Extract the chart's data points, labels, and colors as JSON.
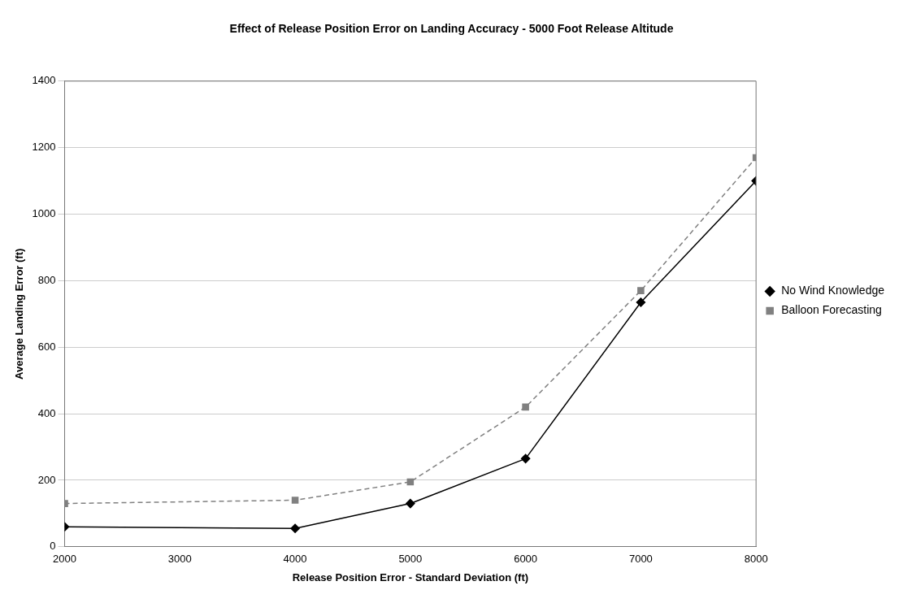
{
  "chart_data": {
    "type": "line",
    "title": "Effect of Release Position Error on Landing Accuracy - 5000 Foot Release Altitude",
    "xlabel": "Release Position Error - Standard Deviation (ft)",
    "ylabel": "Average Landing Error (ft)",
    "x": [
      2000,
      4000,
      5000,
      6000,
      7000,
      8000
    ],
    "series": [
      {
        "name": "No Wind Knowledge",
        "color": "#000000",
        "marker": "diamond",
        "line_style": "solid",
        "values": [
          60,
          55,
          130,
          265,
          735,
          1100
        ]
      },
      {
        "name": "Balloon Forecasting",
        "color": "#808080",
        "marker": "square",
        "line_style": "dashed",
        "values": [
          130,
          140,
          195,
          420,
          770,
          1170
        ]
      }
    ],
    "xlim": [
      2000,
      8000
    ],
    "xticks": [
      2000,
      3000,
      4000,
      5000,
      6000,
      7000,
      8000
    ],
    "ylim": [
      0,
      1400
    ],
    "yticks": [
      0,
      200,
      400,
      600,
      800,
      1000,
      1200,
      1400
    ],
    "grid": "y",
    "legend": "right"
  }
}
